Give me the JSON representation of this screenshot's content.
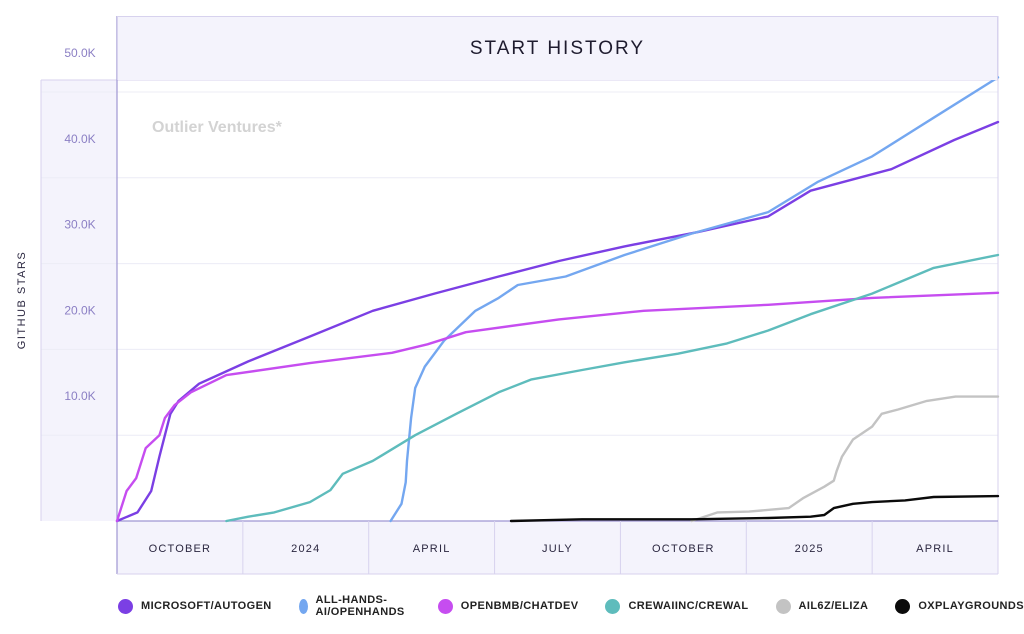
{
  "chart_data": {
    "type": "line",
    "title": "START HISTORY",
    "ylabel": "GITHUB STARS",
    "watermark": "Outlier Ventures*",
    "x_range": [
      "2023-08-27",
      "2025-06-01"
    ],
    "ylim": [
      0,
      50000
    ],
    "y_ticks": [
      10000,
      20000,
      30000,
      40000,
      50000
    ],
    "y_tick_labels": [
      "10.0K",
      "20.0K",
      "30.0K",
      "40.0K",
      "50.0K"
    ],
    "x_tick_labels": [
      "OCTOBER",
      "2024",
      "APRIL",
      "JULY",
      "OCTOBER",
      "2025",
      "APRIL"
    ],
    "x_tick_dates": [
      "2023-10-01",
      "2024-01-01",
      "2024-04-01",
      "2024-07-01",
      "2024-10-01",
      "2025-01-01",
      "2025-04-01"
    ],
    "grid": true,
    "legend_position": "bottom",
    "series": [
      {
        "name": "MICROSOFT/AUTOGEN",
        "color": "#7b3fe4",
        "points": [
          [
            "2023-08-27",
            0
          ],
          [
            "2023-09-11",
            1000
          ],
          [
            "2023-09-21",
            3500
          ],
          [
            "2023-09-27",
            7500
          ],
          [
            "2023-10-05",
            12500
          ],
          [
            "2023-10-11",
            14000
          ],
          [
            "2023-10-26",
            16000
          ],
          [
            "2023-12-01",
            18600
          ],
          [
            "2024-01-15",
            21500
          ],
          [
            "2024-03-01",
            24500
          ],
          [
            "2024-04-15",
            26500
          ],
          [
            "2024-06-01",
            28500
          ],
          [
            "2024-07-15",
            30300
          ],
          [
            "2024-09-01",
            32000
          ],
          [
            "2024-10-25",
            33700
          ],
          [
            "2024-12-15",
            35500
          ],
          [
            "2025-01-15",
            38500
          ],
          [
            "2025-03-15",
            41000
          ],
          [
            "2025-04-30",
            44400
          ],
          [
            "2025-06-01",
            46500
          ]
        ]
      },
      {
        "name": "ALL-HANDS-AI/OPENHANDS",
        "color": "#74a7f0",
        "points": [
          [
            "2024-03-14",
            0
          ],
          [
            "2024-03-22",
            2000
          ],
          [
            "2024-03-25",
            4500
          ],
          [
            "2024-03-26",
            7000
          ],
          [
            "2024-03-29",
            12000
          ],
          [
            "2024-04-01",
            15500
          ],
          [
            "2024-04-08",
            18000
          ],
          [
            "2024-04-22",
            21000
          ],
          [
            "2024-05-15",
            24500
          ],
          [
            "2024-06-01",
            26000
          ],
          [
            "2024-06-15",
            27500
          ],
          [
            "2024-07-20",
            28500
          ],
          [
            "2024-09-01",
            31000
          ],
          [
            "2024-10-20",
            33500
          ],
          [
            "2024-12-15",
            36000
          ],
          [
            "2025-01-20",
            39500
          ],
          [
            "2025-03-01",
            42500
          ],
          [
            "2025-04-15",
            47000
          ],
          [
            "2025-06-01",
            51700
          ]
        ]
      },
      {
        "name": "OPENBMB/CHATDEV",
        "color": "#c64df0",
        "points": [
          [
            "2023-08-27",
            0
          ],
          [
            "2023-09-03",
            3500
          ],
          [
            "2023-09-10",
            5000
          ],
          [
            "2023-09-17",
            8500
          ],
          [
            "2023-09-27",
            10000
          ],
          [
            "2023-10-01",
            12000
          ],
          [
            "2023-10-08",
            13500
          ],
          [
            "2023-10-20",
            15000
          ],
          [
            "2023-11-15",
            17000
          ],
          [
            "2024-01-15",
            18400
          ],
          [
            "2024-03-15",
            19600
          ],
          [
            "2024-04-10",
            20600
          ],
          [
            "2024-05-08",
            22000
          ],
          [
            "2024-07-15",
            23500
          ],
          [
            "2024-09-15",
            24500
          ],
          [
            "2024-12-15",
            25200
          ],
          [
            "2025-03-01",
            26000
          ],
          [
            "2025-06-01",
            26600
          ]
        ]
      },
      {
        "name": "CREWAIINC/CREWAL",
        "color": "#5ebcbc",
        "points": [
          [
            "2023-11-15",
            0
          ],
          [
            "2023-12-01",
            500
          ],
          [
            "2023-12-20",
            1000
          ],
          [
            "2024-01-15",
            2200
          ],
          [
            "2024-01-30",
            3600
          ],
          [
            "2024-02-08",
            5500
          ],
          [
            "2024-03-01",
            7000
          ],
          [
            "2024-04-01",
            10000
          ],
          [
            "2024-05-01",
            12500
          ],
          [
            "2024-06-01",
            15000
          ],
          [
            "2024-06-25",
            16500
          ],
          [
            "2024-08-01",
            17600
          ],
          [
            "2024-09-01",
            18500
          ],
          [
            "2024-10-10",
            19500
          ],
          [
            "2024-11-15",
            20700
          ],
          [
            "2024-12-15",
            22200
          ],
          [
            "2025-01-15",
            24100
          ],
          [
            "2025-03-01",
            26500
          ],
          [
            "2025-04-15",
            29500
          ],
          [
            "2025-06-01",
            31000
          ]
        ]
      },
      {
        "name": "AIL6Z/ELIZA",
        "color": "#c3c3c3",
        "points": [
          [
            "2024-10-20",
            0
          ],
          [
            "2024-11-08",
            1000
          ],
          [
            "2024-12-01",
            1100
          ],
          [
            "2024-12-30",
            1500
          ],
          [
            "2025-01-10",
            2700
          ],
          [
            "2025-01-25",
            4000
          ],
          [
            "2025-02-01",
            4700
          ],
          [
            "2025-02-03",
            5800
          ],
          [
            "2025-02-07",
            7500
          ],
          [
            "2025-02-15",
            9500
          ],
          [
            "2025-03-01",
            11000
          ],
          [
            "2025-03-08",
            12500
          ],
          [
            "2025-03-20",
            13000
          ],
          [
            "2025-04-10",
            14000
          ],
          [
            "2025-05-01",
            14500
          ],
          [
            "2025-06-01",
            14500
          ]
        ]
      },
      {
        "name": "OXPLAYGROUNDS/RIG",
        "color": "#0b0b0b",
        "points": [
          [
            "2024-06-10",
            0
          ],
          [
            "2024-08-01",
            200
          ],
          [
            "2024-10-01",
            200
          ],
          [
            "2024-10-20",
            200
          ],
          [
            "2024-12-15",
            350
          ],
          [
            "2025-01-15",
            500
          ],
          [
            "2025-01-25",
            700
          ],
          [
            "2025-02-01",
            1500
          ],
          [
            "2025-02-15",
            2000
          ],
          [
            "2025-03-01",
            2200
          ],
          [
            "2025-03-25",
            2400
          ],
          [
            "2025-04-15",
            2800
          ],
          [
            "2025-06-01",
            2900
          ]
        ]
      }
    ]
  }
}
